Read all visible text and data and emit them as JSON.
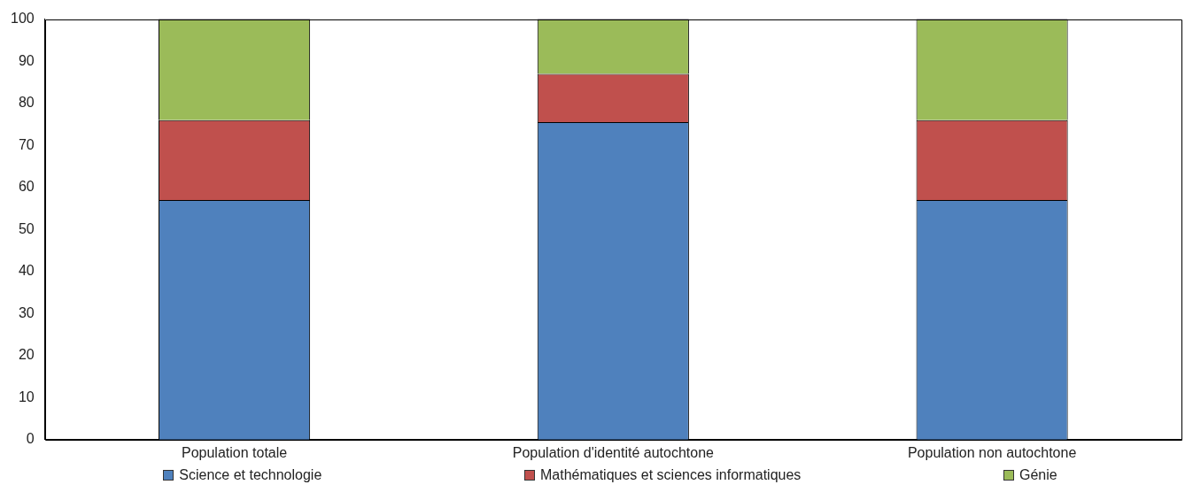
{
  "chart_data": {
    "type": "bar",
    "stacked": true,
    "categories": [
      "Population totale",
      "Population d'identité autochtone",
      "Population non autochtone"
    ],
    "series": [
      {
        "name": "Science et technologie",
        "color": "#4f81bd",
        "values": [
          57,
          75.5,
          57
        ]
      },
      {
        "name": "Mathématiques et sciences informatiques",
        "color": "#c0504d",
        "values": [
          19,
          11.5,
          19
        ]
      },
      {
        "name": "Génie",
        "color": "#9bbb59",
        "values": [
          24,
          13,
          24
        ]
      }
    ],
    "ylim": [
      0,
      100
    ],
    "yticks": [
      0,
      10,
      20,
      30,
      40,
      50,
      60,
      70,
      80,
      90,
      100
    ],
    "grid": false,
    "legend": "bottom"
  }
}
